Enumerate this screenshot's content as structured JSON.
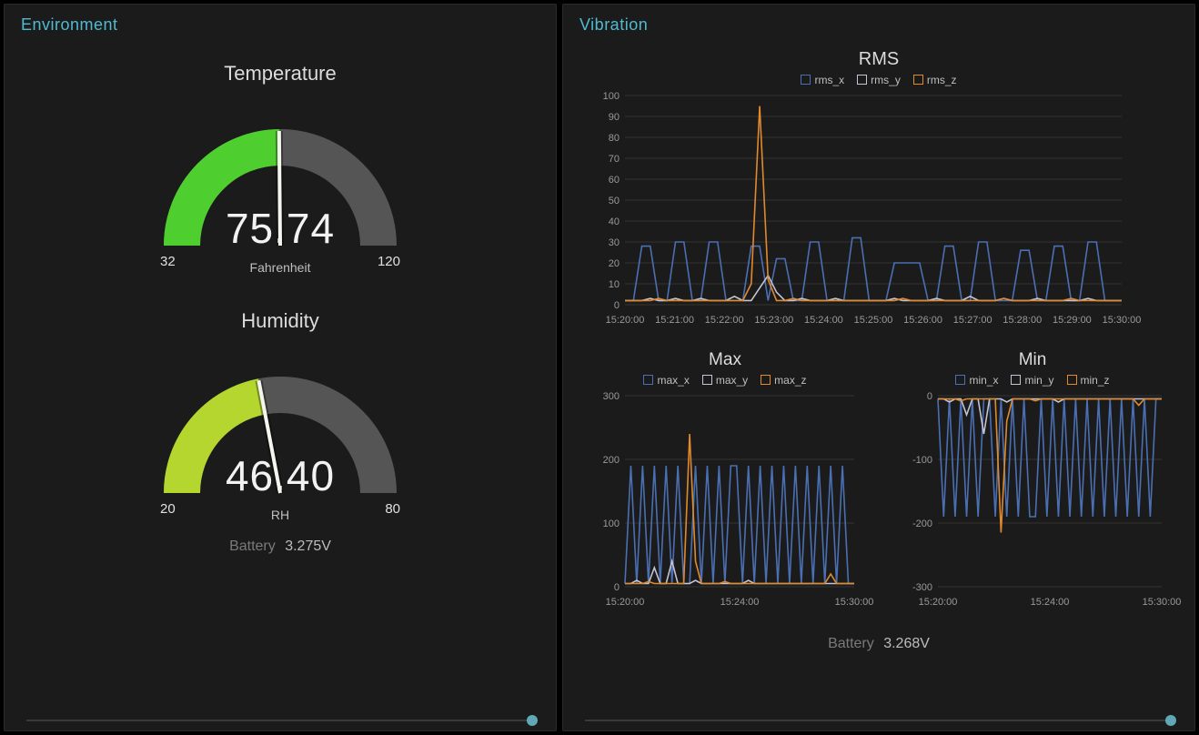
{
  "environment": {
    "panel_title": "Environment",
    "temperature": {
      "title": "Temperature",
      "value": "75.74",
      "value_num": 75.74,
      "unit": "Fahrenheit",
      "min": 32,
      "max": 120,
      "min_label": "32",
      "max_label": "120",
      "arc_color": "#4fcf2f",
      "track_color": "#555555"
    },
    "humidity": {
      "title": "Humidity",
      "value": "46.40",
      "value_num": 46.4,
      "unit": "RH",
      "min": 20,
      "max": 80,
      "min_label": "20",
      "max_label": "80",
      "arc_color": "#b4d62f",
      "track_color": "#555555"
    },
    "battery": {
      "label": "Battery",
      "value": "3.275V"
    }
  },
  "vibration": {
    "panel_title": "Vibration",
    "battery": {
      "label": "Battery",
      "value": "3.268V"
    },
    "rms": {
      "title": "RMS",
      "legend": [
        {
          "label": "rms_x",
          "color": "#4a6fb3"
        },
        {
          "label": "rms_y",
          "color": "#c4c4d4"
        },
        {
          "label": "rms_z",
          "color": "#e08a2c"
        }
      ],
      "ylim": [
        0,
        100
      ],
      "ytick_step": 10,
      "xticks": [
        "15:20:00",
        "15:21:00",
        "15:22:00",
        "15:23:00",
        "15:24:00",
        "15:25:00",
        "15:26:00",
        "15:27:00",
        "15:28:00",
        "15:29:00",
        "15:30:00"
      ],
      "grid_color": "#333333",
      "series": {
        "rms_x": [
          2,
          2,
          28,
          28,
          2,
          2,
          30,
          30,
          2,
          2,
          30,
          30,
          2,
          2,
          2,
          28,
          28,
          2,
          22,
          22,
          2,
          2,
          30,
          30,
          2,
          2,
          2,
          32,
          32,
          2,
          2,
          2,
          20,
          20,
          20,
          20,
          2,
          2,
          28,
          28,
          2,
          2,
          30,
          30,
          2,
          2,
          2,
          26,
          26,
          2,
          2,
          28,
          28,
          2,
          2,
          30,
          30,
          2,
          2,
          2
        ],
        "rms_y": [
          2,
          2,
          2,
          3,
          2,
          2,
          3,
          2,
          2,
          3,
          2,
          2,
          2,
          4,
          2,
          2,
          8,
          14,
          6,
          2,
          2,
          3,
          2,
          2,
          2,
          3,
          2,
          2,
          2,
          2,
          2,
          2,
          3,
          2,
          2,
          2,
          2,
          3,
          2,
          2,
          2,
          4,
          2,
          2,
          2,
          3,
          2,
          2,
          2,
          3,
          2,
          2,
          2,
          2,
          2,
          3,
          2,
          2,
          2,
          2
        ],
        "rms_z": [
          2,
          2,
          2,
          2,
          3,
          2,
          2,
          2,
          2,
          2,
          2,
          2,
          2,
          2,
          2,
          10,
          95,
          12,
          2,
          2,
          3,
          2,
          2,
          2,
          2,
          2,
          2,
          2,
          2,
          2,
          2,
          2,
          2,
          3,
          2,
          2,
          2,
          2,
          2,
          2,
          2,
          2,
          2,
          2,
          2,
          3,
          2,
          2,
          2,
          2,
          2,
          2,
          2,
          3,
          2,
          2,
          2,
          2,
          2,
          2
        ]
      }
    },
    "max": {
      "title": "Max",
      "legend": [
        {
          "label": "max_x",
          "color": "#4a6fb3"
        },
        {
          "label": "max_y",
          "color": "#c4c4d4"
        },
        {
          "label": "max_z",
          "color": "#e08a2c"
        }
      ],
      "ylim": [
        0,
        300
      ],
      "ytick_step": 100,
      "xticks": [
        "15:20:00",
        "15:24:00",
        "15:30:00"
      ],
      "grid_color": "#333333",
      "series": {
        "max_x": [
          5,
          190,
          5,
          190,
          5,
          190,
          5,
          190,
          5,
          190,
          5,
          5,
          190,
          5,
          190,
          5,
          190,
          5,
          190,
          190,
          5,
          190,
          5,
          190,
          5,
          190,
          5,
          190,
          5,
          190,
          5,
          190,
          5,
          190,
          5,
          190,
          5,
          190,
          5,
          5
        ],
        "max_y": [
          5,
          5,
          10,
          5,
          5,
          30,
          5,
          5,
          40,
          5,
          5,
          5,
          10,
          5,
          5,
          5,
          5,
          5,
          5,
          5,
          5,
          10,
          5,
          5,
          5,
          5,
          5,
          5,
          5,
          5,
          5,
          5,
          5,
          5,
          5,
          5,
          5,
          5,
          5,
          5
        ],
        "max_z": [
          5,
          5,
          5,
          5,
          8,
          5,
          5,
          5,
          5,
          5,
          5,
          240,
          40,
          5,
          5,
          5,
          5,
          8,
          5,
          5,
          5,
          5,
          5,
          5,
          5,
          5,
          5,
          5,
          5,
          5,
          5,
          5,
          5,
          5,
          5,
          20,
          5,
          5,
          5,
          5
        ]
      }
    },
    "min": {
      "title": "Min",
      "legend": [
        {
          "label": "min_x",
          "color": "#4a6fb3"
        },
        {
          "label": "min_y",
          "color": "#c4c4d4"
        },
        {
          "label": "min_z",
          "color": "#e08a2c"
        }
      ],
      "ylim": [
        -300,
        0
      ],
      "ytick_step": 100,
      "xticks": [
        "15:20:00",
        "15:24:00",
        "15:30:00"
      ],
      "grid_color": "#333333",
      "series": {
        "min_x": [
          -5,
          -190,
          -5,
          -190,
          -5,
          -190,
          -5,
          -190,
          -5,
          -5,
          -190,
          -5,
          -190,
          -5,
          -190,
          -5,
          -190,
          -190,
          -5,
          -190,
          -5,
          -190,
          -5,
          -190,
          -5,
          -190,
          -5,
          -190,
          -5,
          -190,
          -5,
          -190,
          -5,
          -190,
          -5,
          -190,
          -5,
          -190,
          -5,
          -5
        ],
        "min_y": [
          -5,
          -5,
          -10,
          -5,
          -5,
          -30,
          -5,
          -5,
          -60,
          -5,
          -5,
          -5,
          -10,
          -5,
          -5,
          -5,
          -5,
          -5,
          -5,
          -5,
          -5,
          -10,
          -5,
          -5,
          -5,
          -5,
          -5,
          -5,
          -5,
          -5,
          -5,
          -5,
          -5,
          -5,
          -5,
          -5,
          -5,
          -5,
          -5,
          -5
        ],
        "min_z": [
          -5,
          -5,
          -5,
          -5,
          -8,
          -5,
          -5,
          -5,
          -5,
          -5,
          -5,
          -215,
          -40,
          -5,
          -5,
          -5,
          -5,
          -8,
          -5,
          -5,
          -5,
          -5,
          -5,
          -5,
          -5,
          -5,
          -5,
          -5,
          -5,
          -5,
          -5,
          -5,
          -5,
          -5,
          -5,
          -15,
          -5,
          -5,
          -5,
          -5
        ]
      }
    }
  },
  "accent_color": "#4fbad0"
}
